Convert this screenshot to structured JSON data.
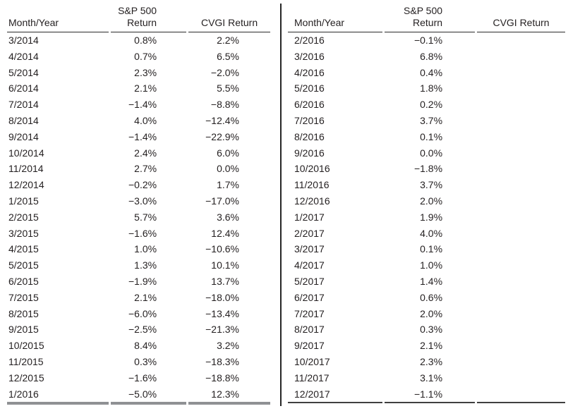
{
  "page": {
    "background_color": "#ffffff",
    "text_color": "#231f20",
    "header_rule_color": "#2b2b2b",
    "divider_color": "#262626",
    "left_table_bottom_rule_color": "#8f9194",
    "right_table_bottom_rule_color": "#3f3f3f"
  },
  "tables": [
    {
      "id": "left",
      "headers": {
        "month": "Month/Year",
        "sp_line1": "S&P 500",
        "sp_line2": "Return",
        "cvgi": "CVGI Return"
      },
      "rows": [
        [
          "3/2014",
          "0.8%",
          "2.2%"
        ],
        [
          "4/2014",
          "0.7%",
          "6.5%"
        ],
        [
          "5/2014",
          "2.3%",
          "−2.0%"
        ],
        [
          "6/2014",
          "2.1%",
          "5.5%"
        ],
        [
          "7/2014",
          "−1.4%",
          "−8.8%"
        ],
        [
          "8/2014",
          "4.0%",
          "−12.4%"
        ],
        [
          "9/2014",
          "−1.4%",
          "−22.9%"
        ],
        [
          "10/2014",
          "2.4%",
          "6.0%"
        ],
        [
          "11/2014",
          "2.7%",
          "0.0%"
        ],
        [
          "12/2014",
          "−0.2%",
          "1.7%"
        ],
        [
          "1/2015",
          "−3.0%",
          "−17.0%"
        ],
        [
          "2/2015",
          "5.7%",
          "3.6%"
        ],
        [
          "3/2015",
          "−1.6%",
          "12.4%"
        ],
        [
          "4/2015",
          "1.0%",
          "−10.6%"
        ],
        [
          "5/2015",
          "1.3%",
          "10.1%"
        ],
        [
          "6/2015",
          "−1.9%",
          "13.7%"
        ],
        [
          "7/2015",
          "2.1%",
          "−18.0%"
        ],
        [
          "8/2015",
          "−6.0%",
          "−13.4%"
        ],
        [
          "9/2015",
          "−2.5%",
          "−21.3%"
        ],
        [
          "10/2015",
          "8.4%",
          "3.2%"
        ],
        [
          "11/2015",
          "0.3%",
          "−18.3%"
        ],
        [
          "12/2015",
          "−1.6%",
          "−18.8%"
        ],
        [
          "1/2016",
          "−5.0%",
          "12.3%"
        ]
      ]
    },
    {
      "id": "right",
      "headers": {
        "month": "Month/Year",
        "sp_line1": "S&P 500",
        "sp_line2": "Return",
        "cvgi": "CVGI Return"
      },
      "rows": [
        [
          "2/2016",
          "−0.1%",
          ""
        ],
        [
          "3/2016",
          "6.8%",
          ""
        ],
        [
          "4/2016",
          "0.4%",
          ""
        ],
        [
          "5/2016",
          "1.8%",
          ""
        ],
        [
          "6/2016",
          "0.2%",
          ""
        ],
        [
          "7/2016",
          "3.7%",
          ""
        ],
        [
          "8/2016",
          "0.1%",
          ""
        ],
        [
          "9/2016",
          "0.0%",
          ""
        ],
        [
          "10/2016",
          "−1.8%",
          ""
        ],
        [
          "11/2016",
          "3.7%",
          ""
        ],
        [
          "12/2016",
          "2.0%",
          ""
        ],
        [
          "1/2017",
          "1.9%",
          ""
        ],
        [
          "2/2017",
          "4.0%",
          ""
        ],
        [
          "3/2017",
          "0.1%",
          ""
        ],
        [
          "4/2017",
          "1.0%",
          ""
        ],
        [
          "5/2017",
          "1.4%",
          ""
        ],
        [
          "6/2017",
          "0.6%",
          ""
        ],
        [
          "7/2017",
          "2.0%",
          ""
        ],
        [
          "8/2017",
          "0.3%",
          ""
        ],
        [
          "9/2017",
          "2.1%",
          ""
        ],
        [
          "10/2017",
          "2.3%",
          ""
        ],
        [
          "11/2017",
          "3.1%",
          ""
        ],
        [
          "12/2017",
          "−1.1%",
          ""
        ]
      ]
    }
  ]
}
